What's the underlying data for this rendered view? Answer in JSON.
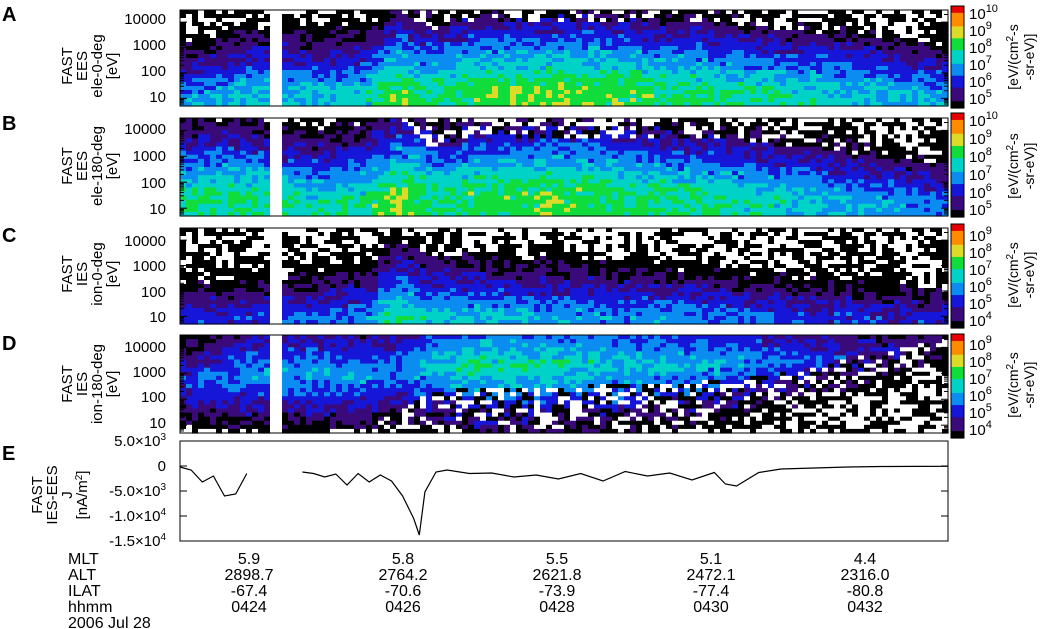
{
  "colors": {
    "palette": [
      "#000000",
      "#3b0a7a",
      "#1616d8",
      "#0a8cf0",
      "#00d2c8",
      "#10dc3c",
      "#dcdc28",
      "#ff8c00",
      "#e60000"
    ],
    "gap": "#ffffff",
    "line": "#000000"
  },
  "panels": [
    {
      "letter": "A",
      "ylabel": [
        "FAST",
        "EES",
        "ele-0-deg",
        "[eV]"
      ],
      "ticks": [
        "10000",
        "1000",
        "100",
        "10"
      ],
      "cbar_ticks": [
        "10",
        "9",
        "8",
        "7",
        "6",
        "5"
      ],
      "cbar_max_exp": "10",
      "cbar_unit": [
        "[eV/(cm",
        "2",
        "-s",
        "-sr-eV)]"
      ]
    },
    {
      "letter": "B",
      "ylabel": [
        "FAST",
        "EES",
        "ele-180-deg",
        "[eV]"
      ],
      "ticks": [
        "10000",
        "1000",
        "100",
        "10"
      ],
      "cbar_ticks": [
        "10",
        "9",
        "8",
        "7",
        "6",
        "5"
      ],
      "cbar_max_exp": "10",
      "cbar_unit": [
        "[eV/(cm",
        "2",
        "-s",
        "-sr-eV)]"
      ]
    },
    {
      "letter": "C",
      "ylabel": [
        "FAST",
        "IES",
        "ion-0-deg",
        "[eV]"
      ],
      "ticks": [
        "10000",
        "1000",
        "100",
        "10"
      ],
      "cbar_ticks": [
        "9",
        "8",
        "7",
        "6",
        "5",
        "4"
      ],
      "cbar_max_exp": "9",
      "cbar_unit": [
        "[eV/(cm",
        "2",
        "-s",
        "-sr-eV)]"
      ]
    },
    {
      "letter": "D",
      "ylabel": [
        "FAST",
        "IES",
        "ion-180-deg",
        "[eV]"
      ],
      "ticks": [
        "10000",
        "1000",
        "100",
        "10"
      ],
      "cbar_ticks": [
        "9",
        "8",
        "7",
        "6",
        "5",
        "4"
      ],
      "cbar_max_exp": "9",
      "cbar_unit": [
        "[eV/(cm",
        "2",
        "-s",
        "-sr-eV)]"
      ]
    }
  ],
  "current_panel": {
    "letter": "E",
    "ylabel": [
      "FAST",
      "IES-EES",
      "J",
      "[nA/m",
      "2",
      "]"
    ],
    "ticks": [
      {
        "value": 5000,
        "mant": "5.0×10",
        "exp": "3"
      },
      {
        "value": 0,
        "mant": "0",
        "exp": ""
      },
      {
        "value": -5000,
        "mant": "-5.0×10",
        "exp": "3"
      },
      {
        "value": -10000,
        "mant": "-1.0×10",
        "exp": "4"
      },
      {
        "value": -15000,
        "mant": "-1.5×10",
        "exp": "4"
      }
    ]
  },
  "footer": {
    "row_labels": [
      "MLT",
      "ALT",
      "ILAT",
      "hhmm"
    ],
    "date": "2006 Jul 28",
    "columns": [
      {
        "mlt": "5.9",
        "alt": "2898.7",
        "ilat": "-67.4",
        "hhmm": "0424"
      },
      {
        "mlt": "5.8",
        "alt": "2764.2",
        "ilat": "-70.6",
        "hhmm": "0426"
      },
      {
        "mlt": "5.5",
        "alt": "2621.8",
        "ilat": "-73.9",
        "hhmm": "0428"
      },
      {
        "mlt": "5.1",
        "alt": "2472.1",
        "ilat": "-77.4",
        "hhmm": "0430"
      },
      {
        "mlt": "4.4",
        "alt": "2316.0",
        "ilat": "-80.8",
        "hhmm": "0432"
      }
    ]
  },
  "chart_data": [
    {
      "type": "heatmap",
      "panel": "A",
      "x_unit": "UT",
      "xlim": [
        "04:22:00",
        "04:33:30"
      ],
      "yscale": "log",
      "ylim": [
        5,
        30000
      ],
      "data_gap": [
        "04:23:20",
        "04:23:30"
      ],
      "profile_times": [
        "04:22:00",
        "04:23:00",
        "04:24:00",
        "04:24:45",
        "04:25:15",
        "04:25:45",
        "04:26:30",
        "04:28:00",
        "04:29:30",
        "04:30:30",
        "04:31:30",
        "04:32:30",
        "04:33:30"
      ],
      "log_flux_peak": [
        6.9,
        7.4,
        7.3,
        7.4,
        8.5,
        7.6,
        8.3,
        8.3,
        8.0,
        7.8,
        7.5,
        7.3,
        7.0
      ],
      "log_energy_peak": [
        1.0,
        1.2,
        1.2,
        1.2,
        1.1,
        1.6,
        1.3,
        1.4,
        1.4,
        1.3,
        1.3,
        1.2,
        1.1
      ],
      "log_energy_edge": [
        4.6,
        4.6,
        4.6,
        4.6,
        4.6,
        3.7,
        4.1,
        4.0,
        4.0,
        3.9,
        3.6,
        3.3,
        3.1
      ]
    },
    {
      "type": "heatmap",
      "panel": "B",
      "x_unit": "UT",
      "xlim": [
        "04:22:00",
        "04:33:30"
      ],
      "yscale": "log",
      "ylim": [
        5,
        30000
      ],
      "data_gap": [
        "04:23:20",
        "04:23:30"
      ],
      "profile_times": [
        "04:22:00",
        "04:23:00",
        "04:24:00",
        "04:24:45",
        "04:25:15",
        "04:25:45",
        "04:26:30",
        "04:28:00",
        "04:29:30",
        "04:30:30",
        "04:31:30",
        "04:32:30",
        "04:33:30"
      ],
      "log_flux_peak": [
        7.8,
        7.9,
        7.6,
        7.7,
        8.6,
        7.8,
        8.1,
        8.1,
        7.8,
        7.6,
        7.3,
        7.0,
        6.6
      ],
      "log_energy_peak": [
        1.6,
        1.5,
        1.3,
        1.4,
        1.4,
        1.7,
        1.6,
        1.7,
        1.6,
        1.5,
        1.4,
        1.3,
        1.2
      ],
      "log_energy_edge": [
        4.4,
        4.6,
        4.6,
        4.6,
        4.5,
        3.4,
        3.8,
        3.7,
        3.7,
        3.6,
        3.3,
        3.0,
        2.7
      ]
    },
    {
      "type": "heatmap",
      "panel": "C",
      "x_unit": "UT",
      "xlim": [
        "04:22:00",
        "04:33:30"
      ],
      "yscale": "log",
      "ylim": [
        5,
        30000
      ],
      "data_gap": [
        "04:23:20",
        "04:23:30"
      ],
      "profile_times": [
        "04:22:00",
        "04:23:00",
        "04:24:00",
        "04:24:45",
        "04:25:15",
        "04:25:45",
        "04:26:30",
        "04:28:00",
        "04:29:30",
        "04:30:30",
        "04:31:30",
        "04:32:30",
        "04:33:30"
      ],
      "log_flux_peak": [
        5.2,
        5.3,
        5.6,
        5.8,
        6.9,
        6.3,
        6.2,
        6.0,
        5.8,
        5.6,
        5.4,
        5.2,
        5.1
      ],
      "log_energy_peak": [
        1.0,
        1.0,
        1.0,
        1.0,
        1.05,
        1.05,
        1.05,
        1.05,
        1.0,
        1.0,
        1.0,
        1.0,
        1.0
      ],
      "log_energy_edge": [
        4.6,
        4.6,
        4.6,
        4.6,
        4.6,
        3.3,
        3.5,
        3.5,
        3.3,
        3.0,
        2.7,
        2.3,
        2.0
      ]
    },
    {
      "type": "heatmap",
      "panel": "D",
      "x_unit": "UT",
      "xlim": [
        "04:22:00",
        "04:33:30"
      ],
      "yscale": "log",
      "ylim": [
        5,
        30000
      ],
      "data_gap": [
        "04:23:20",
        "04:23:30"
      ],
      "profile_times": [
        "04:22:00",
        "04:23:00",
        "04:24:00",
        "04:24:45",
        "04:25:15",
        "04:25:45",
        "04:26:30",
        "04:28:00",
        "04:29:30",
        "04:30:30",
        "04:31:30",
        "04:32:30",
        "04:33:30"
      ],
      "log_flux_peak": [
        5.4,
        6.0,
        6.1,
        6.0,
        5.9,
        6.4,
        6.8,
        6.6,
        6.3,
        6.0,
        5.5,
        5.0,
        4.6
      ],
      "log_energy_peak": [
        2.6,
        3.0,
        3.0,
        2.9,
        3.1,
        3.3,
        3.3,
        3.3,
        3.3,
        3.4,
        3.6,
        3.8,
        4.0
      ],
      "log_energy_edge": [
        0.9,
        0.9,
        0.9,
        0.9,
        1.5,
        2.3,
        2.4,
        2.5,
        2.6,
        2.8,
        3.2,
        3.8,
        4.3
      ]
    },
    {
      "type": "line",
      "panel": "E",
      "x_unit": "UT",
      "xlim": [
        "04:22:00",
        "04:33:30"
      ],
      "ylim": [
        -15000,
        5000
      ],
      "series": [
        {
          "x": [
            "04:22:00",
            "04:22:10",
            "04:22:20",
            "04:22:30",
            "04:22:40",
            "04:22:50",
            "04:23:00",
            "04:23:50",
            "04:24:00",
            "04:24:10",
            "04:24:20",
            "04:24:30",
            "04:24:40",
            "04:24:50",
            "04:25:00",
            "04:25:10",
            "04:25:20",
            "04:25:30",
            "04:25:35",
            "04:25:40",
            "04:25:50",
            "04:26:00",
            "04:26:20",
            "04:26:40",
            "04:27:00",
            "04:27:20",
            "04:27:40",
            "04:28:00",
            "04:28:20",
            "04:28:40",
            "04:29:00",
            "04:29:20",
            "04:29:40",
            "04:30:00",
            "04:30:10",
            "04:30:20",
            "04:30:40",
            "04:31:00",
            "04:31:30",
            "04:32:00",
            "04:32:30",
            "04:33:00",
            "04:33:30"
          ],
          "y": [
            -200,
            -800,
            -3200,
            -2000,
            -6000,
            -5600,
            -1500,
            -1200,
            -1500,
            -2200,
            -1600,
            -3800,
            -1500,
            -3200,
            -1800,
            -3000,
            -6000,
            -10500,
            -13800,
            -5200,
            -1200,
            -800,
            -1500,
            -1400,
            -2200,
            -1800,
            -2600,
            -1500,
            -3000,
            -1100,
            -2000,
            -1400,
            -2800,
            -1300,
            -3600,
            -4000,
            -1300,
            -600,
            -400,
            -200,
            -100,
            -80,
            -50
          ]
        }
      ]
    }
  ]
}
